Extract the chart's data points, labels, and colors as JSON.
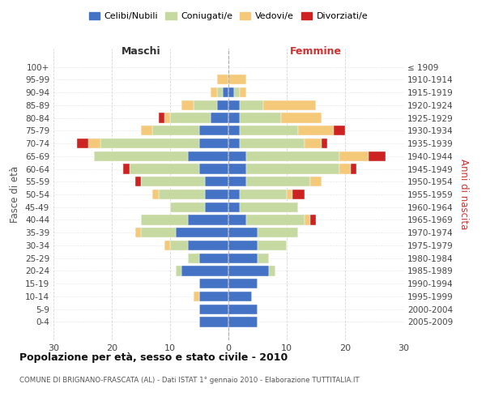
{
  "age_groups": [
    "100+",
    "95-99",
    "90-94",
    "85-89",
    "80-84",
    "75-79",
    "70-74",
    "65-69",
    "60-64",
    "55-59",
    "50-54",
    "45-49",
    "40-44",
    "35-39",
    "30-34",
    "25-29",
    "20-24",
    "15-19",
    "10-14",
    "5-9",
    "0-4"
  ],
  "birth_years": [
    "≤ 1909",
    "1910-1914",
    "1915-1919",
    "1920-1924",
    "1925-1929",
    "1930-1934",
    "1935-1939",
    "1940-1944",
    "1945-1949",
    "1950-1954",
    "1955-1959",
    "1960-1964",
    "1965-1969",
    "1970-1974",
    "1975-1979",
    "1980-1984",
    "1985-1989",
    "1990-1994",
    "1995-1999",
    "2000-2004",
    "2005-2009"
  ],
  "colors": {
    "celibe": "#4472C4",
    "coniugato": "#c5d9a0",
    "vedovo": "#f5c97a",
    "divorziato": "#cc2222"
  },
  "maschi": {
    "celibe": [
      0,
      0,
      1,
      2,
      3,
      5,
      5,
      7,
      5,
      4,
      4,
      4,
      7,
      9,
      7,
      5,
      8,
      5,
      5,
      5,
      5
    ],
    "coniugato": [
      0,
      0,
      1,
      4,
      7,
      8,
      17,
      16,
      12,
      11,
      8,
      6,
      8,
      6,
      3,
      2,
      1,
      0,
      0,
      0,
      0
    ],
    "vedovo": [
      0,
      2,
      1,
      2,
      1,
      2,
      2,
      0,
      0,
      0,
      1,
      0,
      0,
      1,
      1,
      0,
      0,
      0,
      1,
      0,
      0
    ],
    "divorziato": [
      0,
      0,
      0,
      0,
      1,
      0,
      2,
      0,
      1,
      1,
      0,
      0,
      0,
      0,
      0,
      0,
      0,
      0,
      0,
      0,
      0
    ]
  },
  "femmine": {
    "celibe": [
      0,
      0,
      1,
      2,
      2,
      2,
      2,
      3,
      3,
      3,
      2,
      2,
      3,
      5,
      5,
      5,
      7,
      5,
      4,
      5,
      5
    ],
    "coniugato": [
      0,
      0,
      1,
      4,
      7,
      10,
      11,
      16,
      16,
      11,
      8,
      10,
      10,
      7,
      5,
      2,
      1,
      0,
      0,
      0,
      0
    ],
    "vedovo": [
      0,
      3,
      1,
      9,
      7,
      6,
      3,
      5,
      2,
      2,
      1,
      0,
      1,
      0,
      0,
      0,
      0,
      0,
      0,
      0,
      0
    ],
    "divorziato": [
      0,
      0,
      0,
      0,
      0,
      2,
      1,
      3,
      1,
      0,
      2,
      0,
      1,
      0,
      0,
      0,
      0,
      0,
      0,
      0,
      0
    ]
  },
  "title": "Popolazione per età, sesso e stato civile - 2010",
  "subtitle": "COMUNE DI BRIGNANO-FRASCATA (AL) - Dati ISTAT 1° gennaio 2010 - Elaborazione TUTTITALIA.IT",
  "xlabel_left": "Maschi",
  "xlabel_right": "Femmine",
  "ylabel_left": "Fasce di età",
  "ylabel_right": "Anni di nascita",
  "xlim": 30,
  "background_color": "#ffffff",
  "grid_color": "#cccccc"
}
